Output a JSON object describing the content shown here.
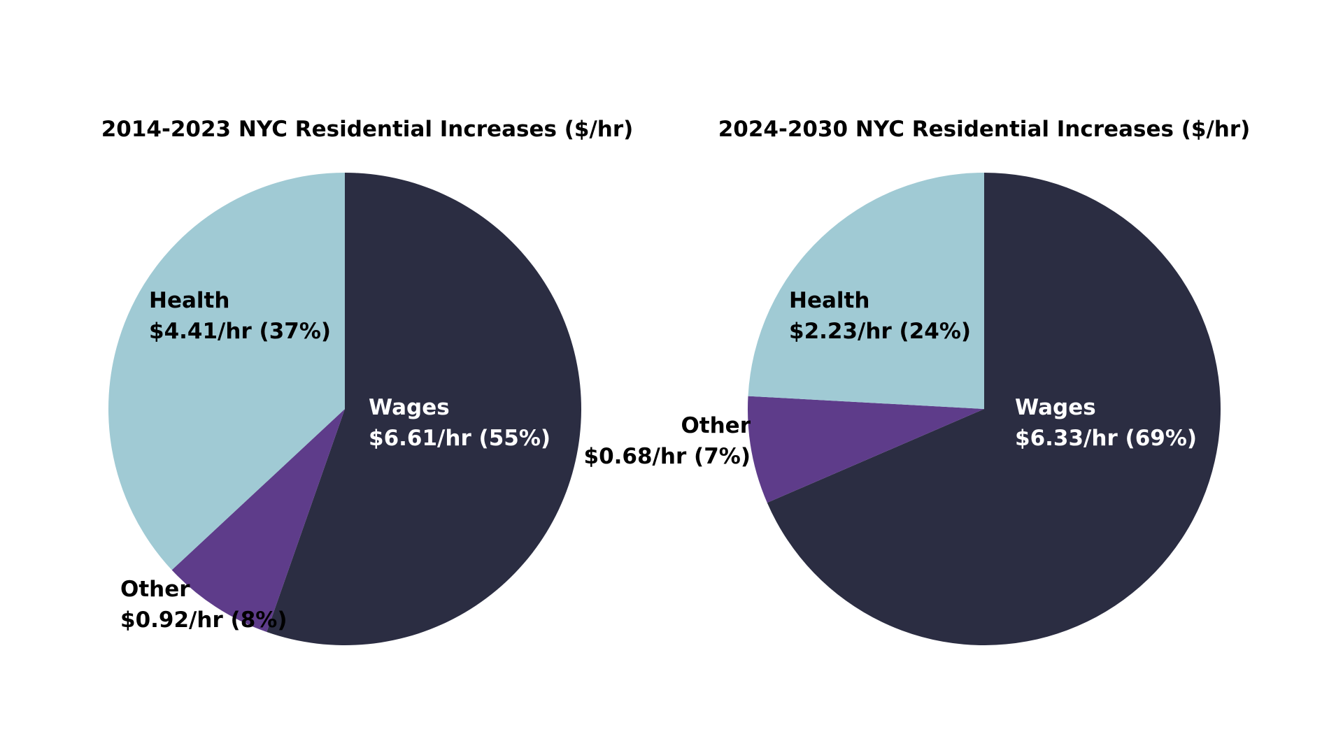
{
  "chart_data": [
    {
      "type": "pie",
      "title": "2014-2023 NYC Residential Increases ($/hr)",
      "slices": [
        {
          "name": "Wages",
          "value": 6.61,
          "percent": 55,
          "value_label": "$6.61/hr (55%)",
          "color": "#2b2d42"
        },
        {
          "name": "Other",
          "value": 0.92,
          "percent": 8,
          "value_label": "$0.92/hr (8%)",
          "color": "#5e3c8a"
        },
        {
          "name": "Health",
          "value": 4.41,
          "percent": 37,
          "value_label": "$4.41/hr (37%)",
          "color": "#a0cad4"
        }
      ]
    },
    {
      "type": "pie",
      "title": "2024-2030 NYC Residential Increases ($/hr)",
      "slices": [
        {
          "name": "Wages",
          "value": 6.33,
          "percent": 69,
          "value_label": "$6.33/hr (69%)",
          "color": "#2b2d42"
        },
        {
          "name": "Other",
          "value": 0.68,
          "percent": 7,
          "value_label": "$0.68/hr (7%)",
          "color": "#5e3c8a"
        },
        {
          "name": "Health",
          "value": 2.23,
          "percent": 24,
          "value_label": "$2.23/hr (24%)",
          "color": "#a0cad4"
        }
      ]
    }
  ]
}
